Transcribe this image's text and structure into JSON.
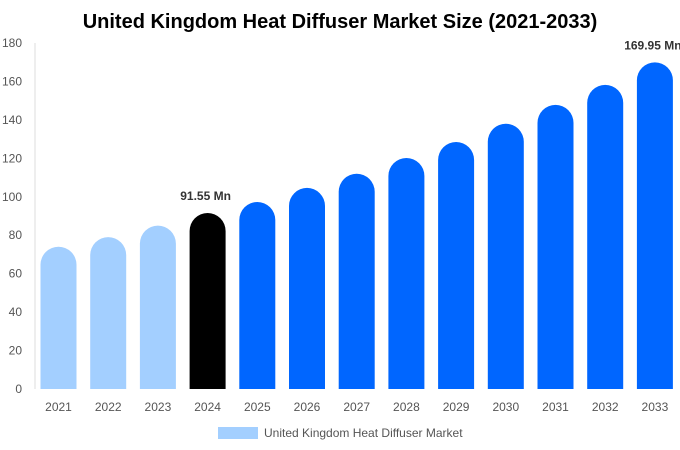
{
  "chart_data": {
    "type": "bar",
    "title": "United Kingdom Heat Diffuser Market Size (2021-2033)",
    "xlabel": "",
    "ylabel": "",
    "ylim": [
      0,
      180
    ],
    "yticks": [
      0,
      20,
      40,
      60,
      80,
      100,
      120,
      140,
      160,
      180
    ],
    "grid": false,
    "legend_position": "bottom",
    "categories": [
      "2021",
      "2022",
      "2023",
      "2024",
      "2025",
      "2026",
      "2027",
      "2028",
      "2029",
      "2030",
      "2031",
      "2032",
      "2033"
    ],
    "series": [
      {
        "name": "United Kingdom Heat Diffuser Market",
        "values": [
          74,
          79,
          85,
          91.55,
          97.3,
          104.6,
          112,
          120.2,
          128.5,
          138,
          147.8,
          158.2,
          169.95
        ]
      }
    ],
    "bar_colors": [
      "#a3cfff",
      "#a3cfff",
      "#a3cfff",
      "#000000",
      "#0066ff",
      "#0066ff",
      "#0066ff",
      "#0066ff",
      "#0066ff",
      "#0066ff",
      "#0066ff",
      "#0066ff",
      "#0066ff"
    ],
    "legend_color": "#a3cfff",
    "data_labels": [
      {
        "category": "2024",
        "text": "91.55 Mn"
      },
      {
        "category": "2033",
        "text": "169.95 Mn"
      }
    ]
  }
}
